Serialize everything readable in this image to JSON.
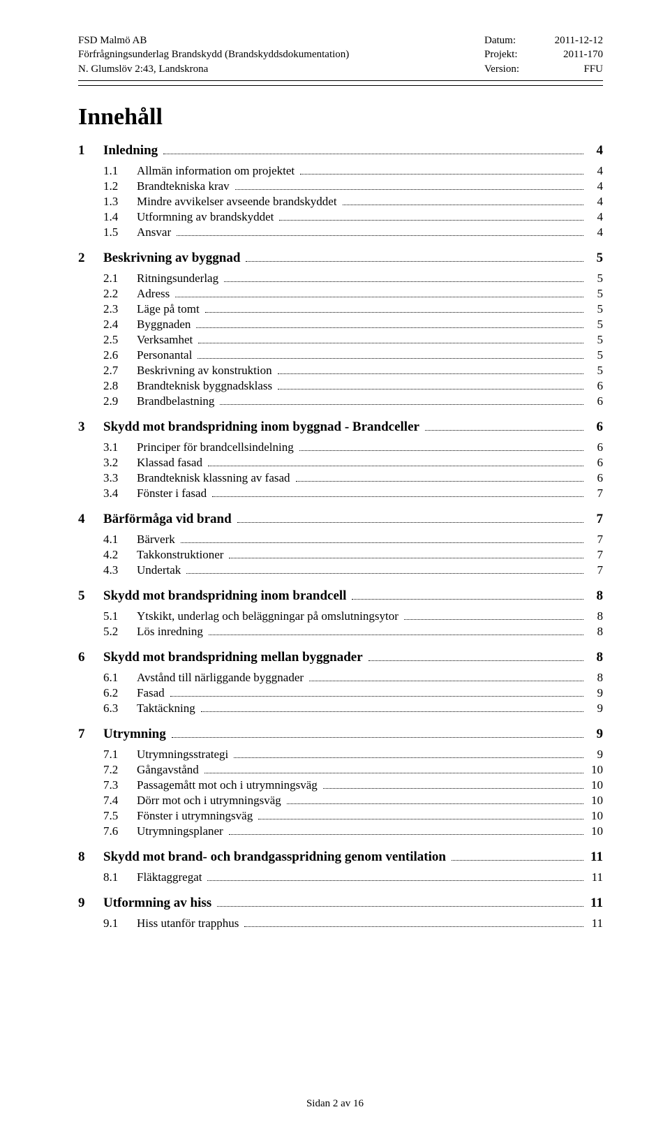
{
  "header": {
    "left1": "FSD Malmö AB",
    "left2": "Förfrågningsunderlag Brandskydd (Brandskyddsdokumentation)",
    "left3": "N. Glumslöv 2:43, Landskrona",
    "r1_label": "Datum:",
    "r1_value": "2011-12-12",
    "r2_label": "Projekt:",
    "r2_value": "2011-170",
    "r3_label": "Version:",
    "r3_value": "FFU"
  },
  "title": "Innehåll",
  "toc": [
    {
      "level": 1,
      "num": "1",
      "text": "Inledning",
      "page": "4",
      "first": true
    },
    {
      "level": 2,
      "num": "1.1",
      "text": "Allmän information om projektet",
      "page": "4"
    },
    {
      "level": 2,
      "num": "1.2",
      "text": "Brandtekniska krav",
      "page": "4"
    },
    {
      "level": 2,
      "num": "1.3",
      "text": "Mindre avvikelser avseende brandskyddet",
      "page": "4"
    },
    {
      "level": 2,
      "num": "1.4",
      "text": "Utformning av brandskyddet",
      "page": "4"
    },
    {
      "level": 2,
      "num": "1.5",
      "text": "Ansvar",
      "page": "4"
    },
    {
      "level": 1,
      "num": "2",
      "text": "Beskrivning av byggnad",
      "page": "5"
    },
    {
      "level": 2,
      "num": "2.1",
      "text": "Ritningsunderlag",
      "page": "5"
    },
    {
      "level": 2,
      "num": "2.2",
      "text": "Adress",
      "page": "5"
    },
    {
      "level": 2,
      "num": "2.3",
      "text": "Läge på tomt",
      "page": "5"
    },
    {
      "level": 2,
      "num": "2.4",
      "text": "Byggnaden",
      "page": "5"
    },
    {
      "level": 2,
      "num": "2.5",
      "text": "Verksamhet",
      "page": "5"
    },
    {
      "level": 2,
      "num": "2.6",
      "text": "Personantal",
      "page": "5"
    },
    {
      "level": 2,
      "num": "2.7",
      "text": "Beskrivning av konstruktion",
      "page": "5"
    },
    {
      "level": 2,
      "num": "2.8",
      "text": "Brandteknisk byggnadsklass",
      "page": "6"
    },
    {
      "level": 2,
      "num": "2.9",
      "text": "Brandbelastning",
      "page": "6"
    },
    {
      "level": 1,
      "num": "3",
      "text": "Skydd mot brandspridning inom byggnad - Brandceller",
      "page": "6"
    },
    {
      "level": 2,
      "num": "3.1",
      "text": "Principer för brandcellsindelning",
      "page": "6"
    },
    {
      "level": 2,
      "num": "3.2",
      "text": "Klassad fasad",
      "page": "6"
    },
    {
      "level": 2,
      "num": "3.3",
      "text": "Brandteknisk klassning av fasad",
      "page": "6"
    },
    {
      "level": 2,
      "num": "3.4",
      "text": "Fönster i fasad",
      "page": "7"
    },
    {
      "level": 1,
      "num": "4",
      "text": "Bärförmåga vid brand",
      "page": "7"
    },
    {
      "level": 2,
      "num": "4.1",
      "text": "Bärverk",
      "page": "7"
    },
    {
      "level": 2,
      "num": "4.2",
      "text": "Takkonstruktioner",
      "page": "7"
    },
    {
      "level": 2,
      "num": "4.3",
      "text": "Undertak",
      "page": "7"
    },
    {
      "level": 1,
      "num": "5",
      "text": "Skydd mot brandspridning inom brandcell",
      "page": "8"
    },
    {
      "level": 2,
      "num": "5.1",
      "text": "Ytskikt, underlag och beläggningar på omslutningsytor",
      "page": "8"
    },
    {
      "level": 2,
      "num": "5.2",
      "text": "Lös inredning",
      "page": "8"
    },
    {
      "level": 1,
      "num": "6",
      "text": "Skydd mot brandspridning mellan byggnader",
      "page": "8"
    },
    {
      "level": 2,
      "num": "6.1",
      "text": "Avstånd till närliggande byggnader",
      "page": "8"
    },
    {
      "level": 2,
      "num": "6.2",
      "text": "Fasad",
      "page": "9"
    },
    {
      "level": 2,
      "num": "6.3",
      "text": "Taktäckning",
      "page": "9"
    },
    {
      "level": 1,
      "num": "7",
      "text": "Utrymning",
      "page": "9"
    },
    {
      "level": 2,
      "num": "7.1",
      "text": "Utrymningsstrategi",
      "page": "9"
    },
    {
      "level": 2,
      "num": "7.2",
      "text": "Gångavstånd",
      "page": "10"
    },
    {
      "level": 2,
      "num": "7.3",
      "text": "Passagemått mot och i utrymningsväg",
      "page": "10"
    },
    {
      "level": 2,
      "num": "7.4",
      "text": "Dörr mot och i utrymningsväg",
      "page": "10"
    },
    {
      "level": 2,
      "num": "7.5",
      "text": "Fönster i utrymningsväg",
      "page": "10"
    },
    {
      "level": 2,
      "num": "7.6",
      "text": "Utrymningsplaner",
      "page": "10"
    },
    {
      "level": 1,
      "num": "8",
      "text": "Skydd mot brand- och brandgasspridning genom ventilation",
      "page": "11"
    },
    {
      "level": 2,
      "num": "8.1",
      "text": "Fläktaggregat",
      "page": "11"
    },
    {
      "level": 1,
      "num": "9",
      "text": "Utformning av hiss",
      "page": "11"
    },
    {
      "level": 2,
      "num": "9.1",
      "text": "Hiss utanför trapphus",
      "page": "11"
    }
  ],
  "footer": "Sidan 2 av 16"
}
